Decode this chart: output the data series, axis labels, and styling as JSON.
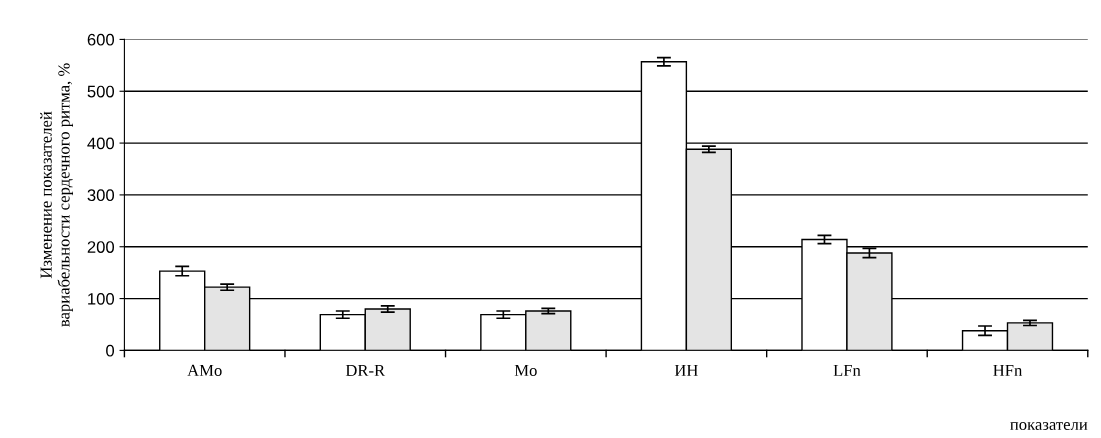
{
  "chart_data": {
    "type": "bar",
    "categories": [
      "AMo",
      "DR-R",
      "Mo",
      "ИН",
      "LFn",
      "HFn"
    ],
    "series": [
      {
        "color": "#ffffff",
        "values": [
          153,
          69,
          69,
          557,
          214,
          38
        ],
        "errors": [
          9,
          7,
          7,
          8,
          8,
          9
        ]
      },
      {
        "color": "#e4e4e4",
        "values": [
          122,
          80,
          76,
          388,
          188,
          53
        ],
        "errors": [
          6,
          6,
          5,
          6,
          9,
          5
        ]
      }
    ],
    "xlabel": "показатели",
    "ylabel": "Изменение показателей\nвариабельности сердечного ритма, %",
    "ylim": [
      0,
      600
    ],
    "yticks": [
      0,
      100,
      200,
      300,
      400,
      500,
      600
    ],
    "grid": "y",
    "legend": false
  }
}
